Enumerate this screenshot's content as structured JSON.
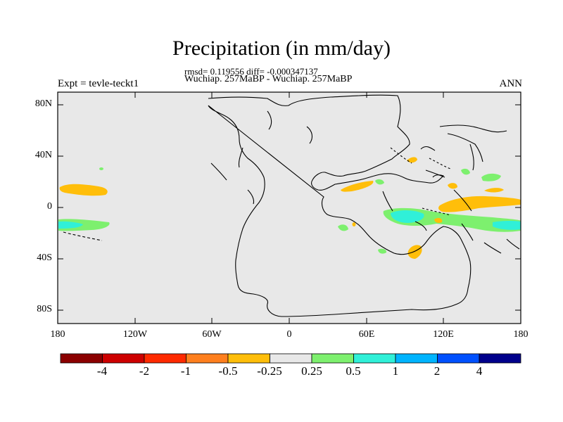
{
  "plot": {
    "title": "Precipitation (in mm/day)",
    "stats": "rmsd= 0.119556 diff= -0.000347137",
    "subtitle": "Wuchiap. 257MaBP - Wuchiap. 257MaBP",
    "experiment": "Expt = tevle-teckt1",
    "season": "ANN",
    "background_color": "#e8e8e8"
  },
  "axes": {
    "lat_labels": [
      "80N",
      "40N",
      "0",
      "40S",
      "80S"
    ],
    "lon_labels": [
      "180",
      "120W",
      "60W",
      "0",
      "60E",
      "120E",
      "180"
    ]
  },
  "colorbar": {
    "labels": [
      "-4",
      "-2",
      "-1",
      "-0.5",
      "-0.25",
      "0.25",
      "0.5",
      "1",
      "2",
      "4"
    ],
    "colors": [
      "#8b0000",
      "#cd0000",
      "#ff2a00",
      "#ff7f1e",
      "#ffbe0a",
      "#e8e8e8",
      "#7df06e",
      "#30f0d8",
      "#00b4ff",
      "#0050ff",
      "#00008b"
    ]
  },
  "chart_data": {
    "type": "map-contour",
    "title": "Precipitation (in mm/day)",
    "lat_range": [
      -90,
      90
    ],
    "lon_range": [
      -180,
      180
    ],
    "anomaly_regions": [
      {
        "name": "central-pacific-north",
        "lon": -163,
        "lat": 15,
        "bin": "-0.5 to -0.25"
      },
      {
        "name": "central-pacific-south",
        "lon": -165,
        "lat": -15,
        "bin": "1 to 2"
      },
      {
        "name": "tethys-west",
        "lon": 45,
        "lat": 17,
        "bin": "-0.5 to -0.25"
      },
      {
        "name": "tethys-south-band",
        "lon": 105,
        "lat": -12,
        "bin": "1 to 2"
      },
      {
        "name": "tethys-east",
        "lon": 148,
        "lat": 0,
        "bin": "-0.5 to -0.25"
      },
      {
        "name": "east-pacific-south",
        "lon": 170,
        "lat": -15,
        "bin": "1 to 2"
      },
      {
        "name": "south-tethys",
        "lon": 95,
        "lat": -33,
        "bin": "-0.5 to -0.25"
      },
      {
        "name": "east-asia",
        "lon": 152,
        "lat": 22,
        "bin": "0.25 to 0.5"
      }
    ]
  }
}
